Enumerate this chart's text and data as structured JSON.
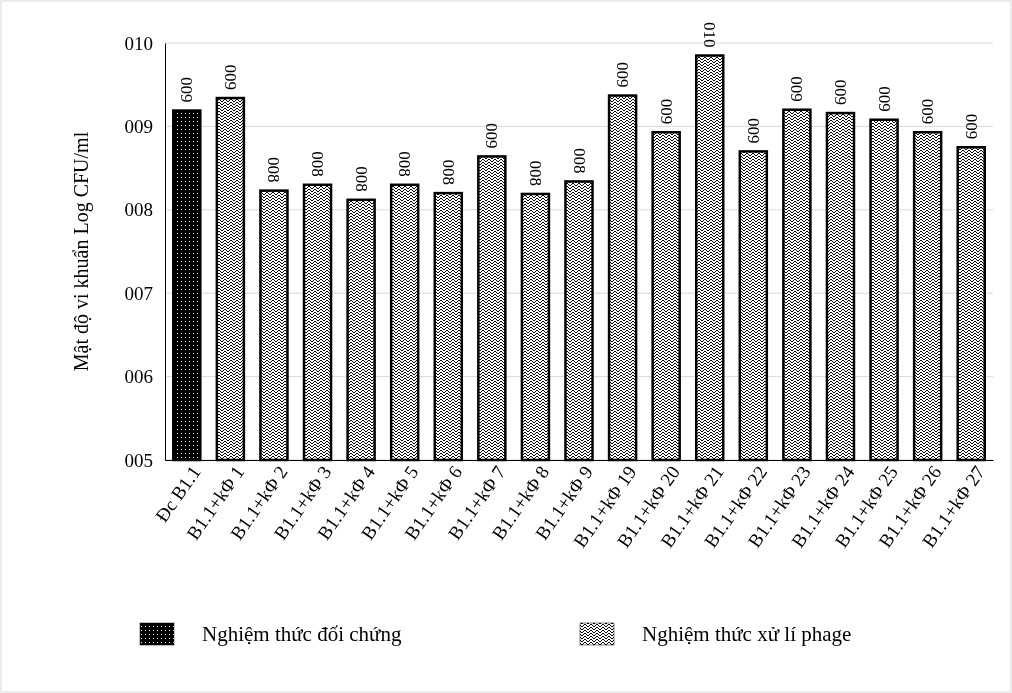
{
  "chart_data": {
    "type": "bar",
    "ylabel": "Mật độ vi khuẩn Log CFU/ml",
    "categories": [
      "Đc B1.1",
      "B1.1+kΦ 1",
      "B1.1+kΦ 2",
      "B1.1+kΦ 3",
      "B1.1+kΦ 4",
      "B1.1+kΦ 5",
      "B1.1+kΦ 6",
      "B1.1+kΦ 7",
      "B1.1+kΦ 8",
      "B1.1+kΦ 9",
      "B1.1+kΦ 19",
      "B1.1+kΦ 20",
      "B1.1+kΦ 21",
      "B1.1+kΦ 22",
      "B1.1+kΦ 23",
      "B1.1+kΦ 24",
      "B1.1+kΦ 25",
      "B1.1+kΦ 26",
      "B1.1+kΦ 27"
    ],
    "series": [
      {
        "name": "Nghiệm thức đối chứng",
        "color": "#000000",
        "values": [
          9.19,
          null,
          null,
          null,
          null,
          null,
          null,
          null,
          null,
          null,
          null,
          null,
          null,
          null,
          null,
          null,
          null,
          null,
          null
        ],
        "value_labels": [
          "009",
          null,
          null,
          null,
          null,
          null,
          null,
          null,
          null,
          null,
          null,
          null,
          null,
          null,
          null,
          null,
          null,
          null,
          null
        ]
      },
      {
        "name": "Nghiệm thức xử lí phage",
        "color": "#000000",
        "values": [
          null,
          9.34,
          8.23,
          8.3,
          8.12,
          8.3,
          8.2,
          8.64,
          8.19,
          8.34,
          9.37,
          8.93,
          9.85,
          8.7,
          9.2,
          9.16,
          9.08,
          8.93,
          8.75
        ],
        "value_labels": [
          null,
          "009",
          "008",
          "008",
          "008",
          "008",
          "008",
          "009",
          "008",
          "008",
          "009",
          "009",
          "010",
          "009",
          "009",
          "009",
          "009",
          "009",
          "009"
        ]
      }
    ],
    "ylim": [
      5,
      10
    ],
    "yticks": [
      {
        "value": 5,
        "label": "005"
      },
      {
        "value": 6,
        "label": "006"
      },
      {
        "value": 7,
        "label": "007"
      },
      {
        "value": 8,
        "label": "008"
      },
      {
        "value": 9,
        "label": "009"
      },
      {
        "value": 10,
        "label": "010"
      }
    ],
    "grid": "y",
    "legend": "bottom"
  }
}
